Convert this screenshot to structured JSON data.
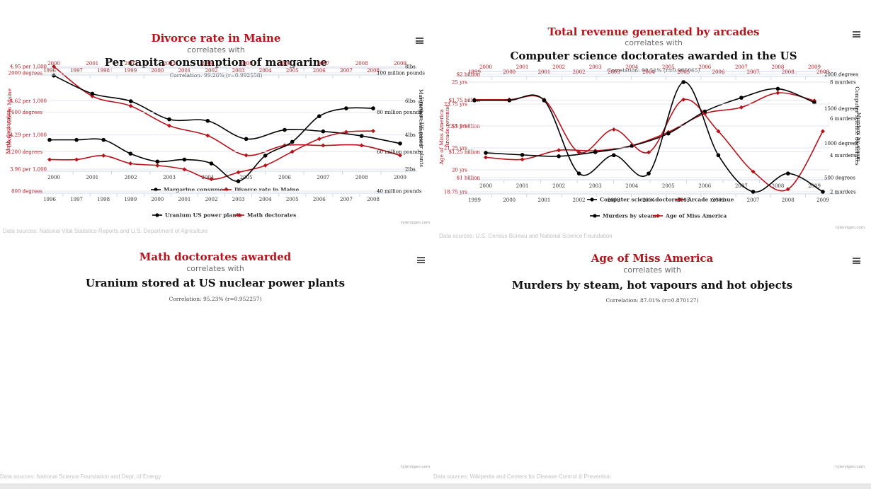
{
  "charts": [
    {
      "title": "Divorce rate in Maine",
      "subtitle": "correlates with",
      "title2": "Per capita consumption of margarine",
      "correlation": "Correlation: 99.26% (r=0.992558)",
      "source": "Data sources: National Vital Statistics Reports and U.S. Department of Agriculture",
      "credit": "tylervigen.com",
      "chart_data": {
        "type": "line",
        "categories": [
          "2000",
          "2001",
          "2002",
          "2003",
          "2004",
          "2005",
          "2006",
          "2007",
          "2008",
          "2009"
        ],
        "series": [
          {
            "name": "Margarine consumed",
            "color": "#000000",
            "axis": "right",
            "values": [
              8.2,
              7.0,
              6.5,
              5.3,
              5.2,
              4.0,
              4.6,
              4.5,
              4.2,
              3.7
            ]
          },
          {
            "name": "Divorce rate in Maine",
            "color": "#b7131c",
            "axis": "left",
            "values": [
              5.0,
              4.7,
              4.6,
              4.4,
              4.3,
              4.1,
              4.2,
              4.2,
              4.2,
              4.1
            ]
          }
        ],
        "left_axis": {
          "label": "Divorce rate in Maine",
          "ticks": [
            "4.95 per 1,000",
            "4.62 per 1,000",
            "4.29 per 1,000",
            "3.96 per 1,000"
          ],
          "ylim": [
            3.96,
            5.0
          ],
          "color": "#b7131c"
        },
        "right_axis": {
          "label": "Margarine consumed",
          "ticks": [
            "8lbs",
            "6lbs",
            "4lbs",
            "2lbs"
          ],
          "ylim": [
            2,
            8.8
          ],
          "color": "#111111"
        },
        "legend": "bottom-center"
      }
    },
    {
      "title": "Total revenue generated by arcades",
      "subtitle": "correlates with",
      "title2": "Computer science doctorates awarded in the US",
      "correlation": "Correlation: 98.51% (r=0.985065)",
      "source": "Data sources: U.S. Census Bureau and National Science Foundation",
      "credit": "tylervigen.com",
      "chart_data": {
        "type": "line",
        "categories": [
          "2000",
          "2001",
          "2002",
          "2003",
          "2004",
          "2005",
          "2006",
          "2007",
          "2008",
          "2009"
        ],
        "series": [
          {
            "name": "Computer science doctorates",
            "color": "#000000",
            "axis": "right",
            "values": [
              860,
              830,
              810,
              870,
              960,
              1140,
              1460,
              1660,
              1790,
              1590
            ]
          },
          {
            "name": "Arcade revenue",
            "color": "#b7131c",
            "axis": "left",
            "values": [
              1.196,
              1.176,
              1.265,
              1.26,
              1.31,
              1.44,
              1.62,
              1.68,
              1.82,
              1.745
            ]
          }
        ],
        "left_axis": {
          "label": "Arcade revenue",
          "ticks": [
            "$2 billion",
            "$1.75 billion",
            "$1.5 billion",
            "$1.25 billion",
            "$1 billion"
          ],
          "ylim": [
            1.0,
            2.0
          ],
          "color": "#b7131c"
        },
        "right_axis": {
          "label": "Computer science doctorates",
          "ticks": [
            "2000 degrees",
            "1500 degrees",
            "1000 degrees",
            "500 degrees"
          ],
          "ylim": [
            500,
            2000
          ],
          "color": "#111111"
        },
        "legend": "bottom-center"
      }
    },
    {
      "title": "Math doctorates awarded",
      "subtitle": "correlates with",
      "title2": "Uranium stored at US nuclear power plants",
      "correlation": "Correlation: 95.23% (r=0.952257)",
      "source": "Data sources: National Science Foundation and Dept. of Energy",
      "credit": "tylervigen.com",
      "chart_data": {
        "type": "line",
        "categories": [
          "1996",
          "1997",
          "1998",
          "1999",
          "2000",
          "2001",
          "2002",
          "2003",
          "2004",
          "2005",
          "2006",
          "2007",
          "2008"
        ],
        "series": [
          {
            "name": "Uranium US power plants",
            "color": "#000000",
            "axis": "right",
            "values": [
              66,
              66,
              66,
              59,
              55,
              56,
              54,
              45,
              58,
              65,
              78,
              82,
              82
            ]
          },
          {
            "name": "Math doctorates",
            "color": "#b7131c",
            "axis": "left",
            "values": [
              1120,
              1120,
              1160,
              1080,
              1060,
              1020,
              920,
              990,
              1060,
              1200,
              1330,
              1400,
              1410
            ]
          }
        ],
        "left_axis": {
          "label": "Math doctorates",
          "ticks": [
            "2000 degrees",
            "1600 degrees",
            "1200 degrees",
            "800 degrees"
          ],
          "ylim": [
            800,
            2000
          ],
          "color": "#b7131c"
        },
        "right_axis": {
          "label": "Uranium US power plants",
          "ticks": [
            "100 million pounds",
            "80 million pounds",
            "60 million pounds",
            "40 million pounds"
          ],
          "ylim": [
            40,
            100
          ],
          "color": "#111111"
        },
        "legend": "bottom-center"
      }
    },
    {
      "title": "Age of Miss America",
      "subtitle": "correlates with",
      "title2": "Murders by steam, hot vapours and hot objects",
      "correlation": "Correlation: 87.01% (r=0.870127)",
      "source": "Data sources: Wikipedia and Centers for Disease Control & Prevention",
      "credit": "tylervigen.com",
      "chart_data": {
        "type": "line",
        "categories": [
          "1999",
          "2000",
          "2001",
          "2002",
          "2003",
          "2004",
          "2005",
          "2006",
          "2007",
          "2008",
          "2009"
        ],
        "series": [
          {
            "name": "Murders by steam",
            "color": "#000000",
            "axis": "right",
            "values": [
              7,
              7,
              7,
              3,
              4,
              3,
              8,
              4,
              2,
              3,
              2
            ]
          },
          {
            "name": "Age of Miss America",
            "color": "#b7131c",
            "axis": "left",
            "values": [
              24,
              24,
              24,
              21,
              22.3,
              21,
              24,
              22.2,
              19.9,
              18.9,
              22.2
            ]
          }
        ],
        "left_axis": {
          "label": "Age of Miss America",
          "ticks": [
            "25 yrs",
            "23.75 yrs",
            "22.5 yrs",
            "21.25 yrs",
            "20 yrs",
            "18.75 yrs"
          ],
          "ylim": [
            18.75,
            25
          ],
          "color": "#b7131c"
        },
        "right_axis": {
          "label": "Murders by steam",
          "ticks": [
            "8 murders",
            "6 murders",
            "4 murders",
            "2 murders"
          ],
          "ylim": [
            2,
            8
          ],
          "color": "#111111"
        },
        "legend": "bottom-center"
      }
    }
  ]
}
